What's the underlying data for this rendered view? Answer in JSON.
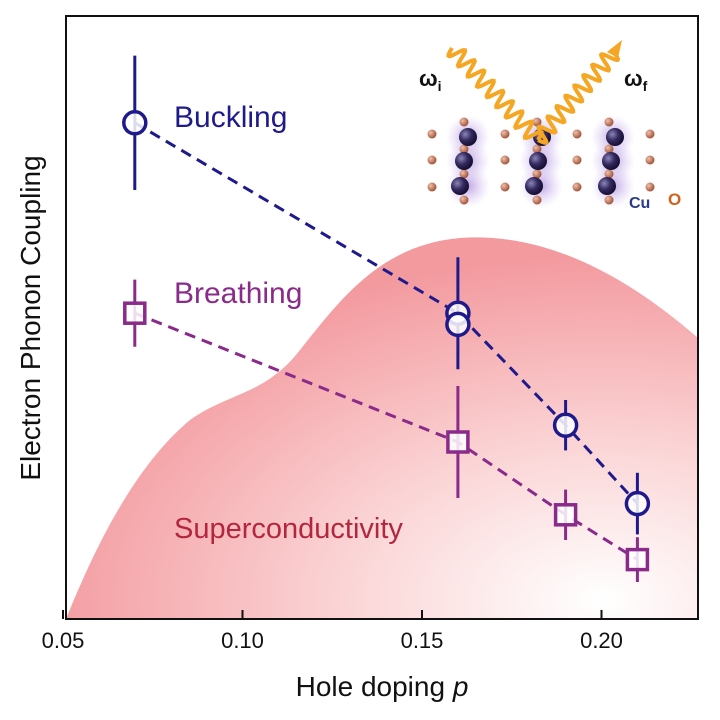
{
  "chart_data": {
    "type": "scatter",
    "xlabel": "Hole doping",
    "xlabel_var": "p",
    "ylabel": "Electron Phonon Coupling",
    "xlim": [
      0.05,
      0.22
    ],
    "ylim": [
      0,
      1
    ],
    "x_ticks": [
      "0.05",
      "0.10",
      "0.15",
      "0.20"
    ],
    "x_tick_values": [
      0.05,
      0.1,
      0.15,
      0.2
    ],
    "y_ticks_labeled": false,
    "series": [
      {
        "name": "Buckling",
        "marker": "circle",
        "color": "#1f1a8c",
        "line_style": "dashed",
        "points": [
          {
            "x": 0.07,
            "y": 0.87,
            "err": 0.12
          },
          {
            "x": 0.16,
            "y": 0.53,
            "err": 0.1
          },
          {
            "x": 0.19,
            "y": 0.33,
            "err": 0.045
          },
          {
            "x": 0.21,
            "y": 0.19,
            "err": 0.055
          }
        ],
        "extra_points": [
          {
            "x": 0.16,
            "y": 0.51
          }
        ]
      },
      {
        "name": "Breathing",
        "marker": "square",
        "color": "#8a2a8a",
        "line_style": "dashed",
        "points": [
          {
            "x": 0.07,
            "y": 0.53,
            "err": 0.06
          },
          {
            "x": 0.16,
            "y": 0.3,
            "err": 0.1
          },
          {
            "x": 0.19,
            "y": 0.17,
            "err": 0.045
          },
          {
            "x": 0.21,
            "y": 0.09,
            "err": 0.04
          }
        ]
      }
    ],
    "region": {
      "label": "Superconductivity",
      "color": "#f4a3a6",
      "label_color": "#b3263d"
    },
    "inset": {
      "omega_i": "ω",
      "omega_i_sub": "i",
      "omega_f": "ω",
      "omega_f_sub": "f",
      "cu_label": "Cu",
      "o_label": "O",
      "wave_color": "#f5a623",
      "cu_color": "#2d2365",
      "o_color": "#b5654a",
      "cu_label_color": "#2a3a8c",
      "o_label_color": "#d4601e"
    },
    "grid": false,
    "legend": "none"
  }
}
